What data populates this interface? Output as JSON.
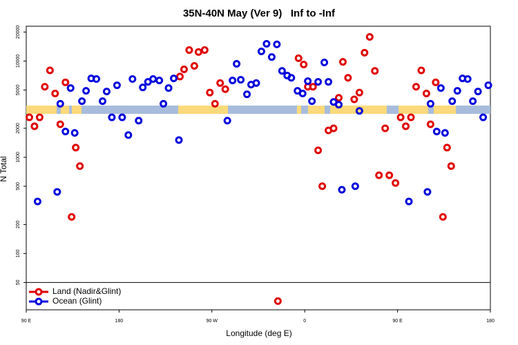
{
  "chart_data": {
    "type": "scatter",
    "title": "35N-40N May (Ver 9)   Inf to -Inf",
    "xlabel": "Longitude (deg E)",
    "ylabel": "N Total",
    "xlim": [
      90,
      540
    ],
    "xticks": [
      {
        "value": 90,
        "label": "90 E"
      },
      {
        "value": 180,
        "label": "180"
      },
      {
        "value": 270,
        "label": "90 W"
      },
      {
        "value": 360,
        "label": "0"
      },
      {
        "value": 450,
        "label": "90 E"
      },
      {
        "value": 540,
        "label": "180"
      }
    ],
    "ylim": [
      26,
      23000
    ],
    "yticks": [
      50,
      100,
      200,
      500,
      1000,
      2000,
      5000,
      10000,
      20000
    ],
    "log_y": true,
    "grid": false,
    "legend": "bottom-left",
    "series": [
      {
        "name": "Land (Nadir&Glint)",
        "color": "#e00000",
        "x": [
          93,
          98,
          103,
          108,
          113,
          118,
          123,
          128,
          134,
          138,
          142,
          239,
          243,
          248,
          253,
          257,
          263,
          268,
          273,
          278,
          283,
          334,
          354,
          359,
          363,
          368,
          373,
          377,
          383,
          388,
          393,
          397,
          402,
          408,
          413,
          418,
          423,
          428,
          432,
          438,
          442,
          448,
          453,
          458,
          463,
          468,
          473,
          478,
          482,
          487,
          494,
          498,
          502
        ],
        "values": [
          2600,
          2100,
          2600,
          5400,
          8000,
          4600,
          2200,
          6000,
          240,
          1260,
          810,
          6900,
          8200,
          13000,
          8900,
          12400,
          13000,
          4700,
          3600,
          5900,
          5100,
          32,
          10700,
          9200,
          5400,
          5400,
          1180,
          500,
          1900,
          2000,
          4150,
          9800,
          6700,
          4000,
          4700,
          12200,
          17800,
          7900,
          650,
          2000,
          650,
          540,
          2600,
          2100,
          2600,
          5400,
          8000,
          4600,
          2200,
          6000,
          240,
          1260,
          810
        ]
      },
      {
        "name": "Ocean (Glint)",
        "color": "#0000dd",
        "x": [
          101,
          120,
          123,
          128,
          133,
          137,
          144,
          148,
          153,
          158,
          164,
          168,
          173,
          178,
          183,
          189,
          193,
          199,
          203,
          208,
          213,
          219,
          223,
          228,
          233,
          238,
          285,
          290,
          294,
          298,
          304,
          308,
          313,
          318,
          323,
          328,
          333,
          338,
          343,
          347,
          353,
          358,
          363,
          367,
          373,
          379,
          383,
          388,
          393,
          396,
          409,
          413,
          461,
          479,
          482,
          488,
          492,
          496,
          503,
          508,
          513,
          518,
          523,
          528,
          533,
          538
        ],
        "values": [
          347,
          437,
          3600,
          1850,
          5240,
          1790,
          3830,
          4900,
          6600,
          6500,
          3830,
          4820,
          2600,
          5600,
          2600,
          1700,
          6500,
          2400,
          5320,
          6080,
          6500,
          6280,
          3600,
          5240,
          6600,
          1510,
          2400,
          6280,
          9350,
          6390,
          4510,
          5690,
          5900,
          12600,
          15100,
          11000,
          14900,
          7900,
          7060,
          6700,
          4900,
          4600,
          6180,
          3830,
          6080,
          9660,
          6080,
          3760,
          3520,
          460,
          500,
          3030,
          347,
          437,
          3600,
          1850,
          5240,
          1790,
          3830,
          4900,
          6600,
          6500,
          3830,
          4820,
          2600,
          5600
        ]
      }
    ]
  }
}
